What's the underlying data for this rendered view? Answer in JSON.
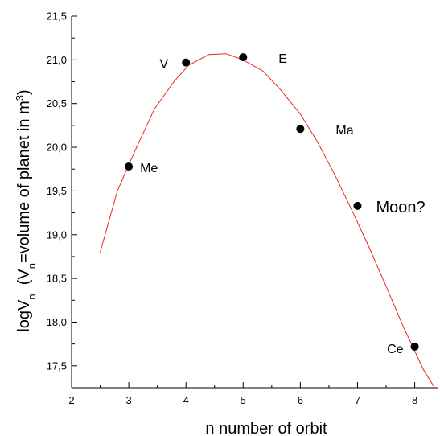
{
  "chart_data": {
    "type": "scatter",
    "xlabel": "n   number of orbit",
    "ylabel": {
      "main": "logV",
      "sub1": "n",
      "paren_open": "  (V",
      "sub2": "n",
      "rest": "=volume of planet in m",
      "sup": "3",
      "paren_close": ")"
    },
    "xlim": [
      2,
      8.4
    ],
    "ylim": [
      17.25,
      21.5
    ],
    "x_ticks": [
      {
        "value": 2,
        "label": "2"
      },
      {
        "value": 3,
        "label": "3"
      },
      {
        "value": 4,
        "label": "4"
      },
      {
        "value": 5,
        "label": "5"
      },
      {
        "value": 6,
        "label": "6"
      },
      {
        "value": 7,
        "label": "7"
      },
      {
        "value": 8,
        "label": "8"
      }
    ],
    "y_ticks": [
      {
        "value": 17.5,
        "label": "17,5"
      },
      {
        "value": 18.0,
        "label": "18,0"
      },
      {
        "value": 18.5,
        "label": "18,5"
      },
      {
        "value": 19.0,
        "label": "19,0"
      },
      {
        "value": 19.5,
        "label": "19,5"
      },
      {
        "value": 20.0,
        "label": "20,0"
      },
      {
        "value": 20.5,
        "label": "20,5"
      },
      {
        "value": 21.0,
        "label": "21,0"
      },
      {
        "value": 21.5,
        "label": "21,5"
      }
    ],
    "grid": false,
    "series": [
      {
        "type": "scatter",
        "color": "#000000",
        "points": [
          {
            "x": 3,
            "y": 19.78,
            "label": "Me"
          },
          {
            "x": 4,
            "y": 20.97,
            "label": "V"
          },
          {
            "x": 5,
            "y": 21.03,
            "label": "E"
          },
          {
            "x": 6,
            "y": 20.21,
            "label": "Ma"
          },
          {
            "x": 7,
            "y": 19.33,
            "label": "Moon?"
          },
          {
            "x": 8,
            "y": 17.72,
            "label": "Ce"
          }
        ]
      },
      {
        "type": "line",
        "color": "#e8271f",
        "points": [
          {
            "x": 2.5,
            "y": 18.8
          },
          {
            "x": 2.8,
            "y": 19.5
          },
          {
            "x": 3.0,
            "y": 19.8
          },
          {
            "x": 3.15,
            "y": 20.02
          },
          {
            "x": 3.45,
            "y": 20.44
          },
          {
            "x": 3.8,
            "y": 20.76
          },
          {
            "x": 4.05,
            "y": 20.94
          },
          {
            "x": 4.4,
            "y": 21.06
          },
          {
            "x": 4.7,
            "y": 21.07
          },
          {
            "x": 5.0,
            "y": 21.0
          },
          {
            "x": 5.35,
            "y": 20.87
          },
          {
            "x": 5.65,
            "y": 20.66
          },
          {
            "x": 6.0,
            "y": 20.38
          },
          {
            "x": 6.3,
            "y": 20.06
          },
          {
            "x": 6.6,
            "y": 19.69
          },
          {
            "x": 6.9,
            "y": 19.28
          },
          {
            "x": 7.2,
            "y": 18.86
          },
          {
            "x": 7.5,
            "y": 18.41
          },
          {
            "x": 7.8,
            "y": 17.95
          },
          {
            "x": 8.0,
            "y": 17.67
          },
          {
            "x": 8.15,
            "y": 17.46
          },
          {
            "x": 8.35,
            "y": 17.25
          }
        ]
      }
    ]
  }
}
